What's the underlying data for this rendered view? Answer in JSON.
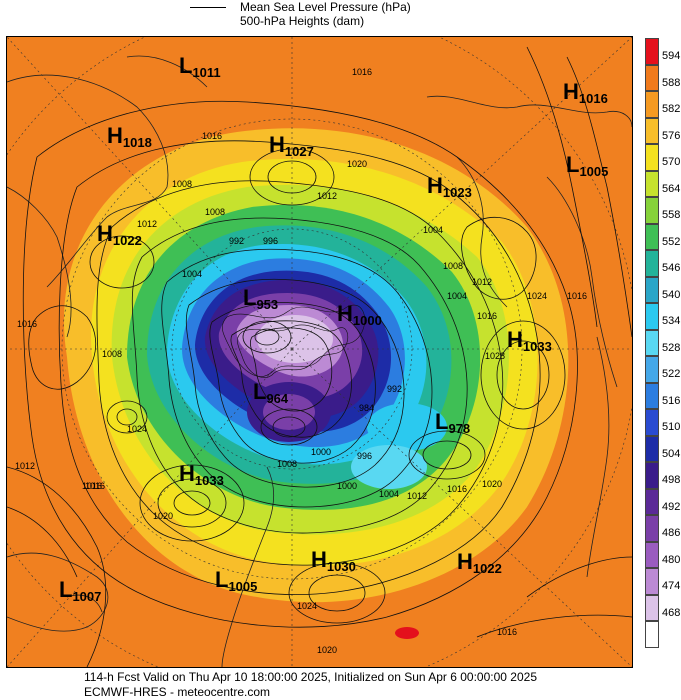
{
  "legend": {
    "items": [
      {
        "label": "Mean Sea Level Pressure (hPa)",
        "style": "line"
      },
      {
        "label": "500-hPa Heights (dam)",
        "style": "none"
      }
    ]
  },
  "colorbar": {
    "levels": [
      "594",
      "588",
      "582",
      "576",
      "570",
      "564",
      "558",
      "552",
      "546",
      "540",
      "534",
      "528",
      "522",
      "516",
      "510",
      "504",
      "498",
      "492",
      "486",
      "480",
      "474",
      "468"
    ],
    "colors": [
      "#e4101c",
      "#f07a1c",
      "#f59a22",
      "#f8be2a",
      "#f4e11f",
      "#c6e22e",
      "#86d23a",
      "#3fbf55",
      "#23b39a",
      "#2aa6c8",
      "#2bc9ef",
      "#59d8f2",
      "#45a8e9",
      "#2c7de0",
      "#2a4bd1",
      "#1d2ca7",
      "#3a1c8a",
      "#5b2a97",
      "#7a3fa8",
      "#9a5cbf",
      "#bc8ad4",
      "#dcc3e8",
      "#ffffff"
    ]
  },
  "pressure_centers": [
    {
      "type": "L",
      "value": "1011"
    },
    {
      "type": "H",
      "value": "1018"
    },
    {
      "type": "H",
      "value": "1027"
    },
    {
      "type": "H",
      "value": "1023"
    },
    {
      "type": "H",
      "value": "1016"
    },
    {
      "type": "L",
      "value": "1005"
    },
    {
      "type": "H",
      "value": "1022"
    },
    {
      "type": "L",
      "value": "953"
    },
    {
      "type": "H",
      "value": "1000"
    },
    {
      "type": "H",
      "value": "1033"
    },
    {
      "type": "L",
      "value": "964"
    },
    {
      "type": "L",
      "value": "978"
    },
    {
      "type": "H",
      "value": "1033"
    },
    {
      "type": "H",
      "value": "1030"
    },
    {
      "type": "H",
      "value": "1022"
    },
    {
      "type": "L",
      "value": "1007"
    },
    {
      "type": "L",
      "value": "1005"
    }
  ],
  "isobar_labels": [
    "1016",
    "1016",
    "1016",
    "1020",
    "1012",
    "1008",
    "1012",
    "1004",
    "992",
    "996",
    "1008",
    "1004",
    "1008",
    "1004",
    "1012",
    "1016",
    "1016",
    "1024",
    "1028",
    "1008",
    "1024",
    "1016",
    "1012",
    "1016",
    "1020",
    "992",
    "984",
    "1008",
    "1000",
    "1004",
    "996",
    "1000",
    "1012",
    "1016",
    "1020",
    "1024",
    "1020",
    "1016"
  ],
  "footer": {
    "line1": "114-h Fcst Valid on Thu Apr 10 18:00:00 2025, Initialized on Sun Apr  6 00:00:00 2025",
    "line2": "ECMWF-HRES - meteocentre.com"
  }
}
